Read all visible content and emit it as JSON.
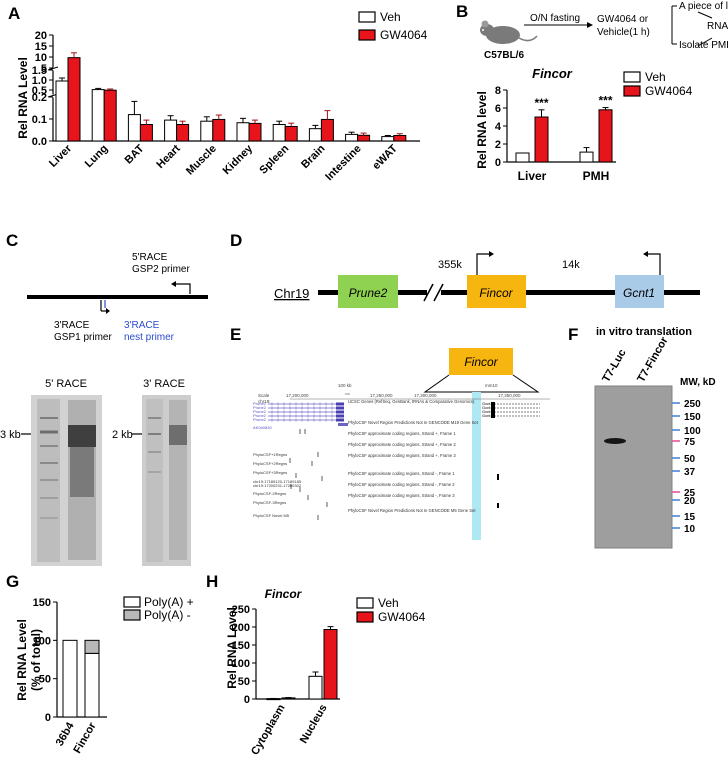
{
  "panel_labels": [
    "A",
    "B",
    "C",
    "D",
    "E",
    "F",
    "G",
    "H"
  ],
  "colors": {
    "veh": "#ffffff",
    "gw": "#e8141b",
    "polya_minus": "#b8b8b8",
    "outline": "#000000",
    "gene_prune2": "#8fd150",
    "gene_fincor": "#f7b50f",
    "gene_gcnt1": "#a9cbe8",
    "highlight": "#aee8f2",
    "mw_marker": "#e24a8e",
    "mw_marker_blue": "#3c7ed8"
  },
  "panel_a": {
    "legend": [
      "Veh",
      "GW4064"
    ],
    "chart_data": {
      "type": "bar",
      "categories": [
        "Liver",
        "Lung",
        "BAT",
        "Heart",
        "Muscle",
        "Kidney",
        "Spleen",
        "Brain",
        "Intestine",
        "eWAT"
      ],
      "series": [
        {
          "name": "Veh",
          "values": [
            0.95,
            0.52,
            0.12,
            0.095,
            0.09,
            0.083,
            0.075,
            0.056,
            0.03,
            0.02
          ],
          "errors": [
            0.15,
            0.06,
            0.06,
            0.02,
            0.02,
            0.02,
            0.015,
            0.015,
            0.01,
            0.005
          ]
        },
        {
          "name": "GW4064",
          "values": [
            9.7,
            0.49,
            0.075,
            0.075,
            0.098,
            0.08,
            0.066,
            0.098,
            0.026,
            0.025
          ],
          "errors": [
            2.2,
            0.06,
            0.02,
            0.015,
            0.02,
            0.015,
            0.015,
            0.04,
            0.01,
            0.008
          ]
        }
      ],
      "ylabel": "Rel RNA Level",
      "ylim": [
        0,
        20
      ],
      "scale": "broken (segments 0-0.2, 0.25-1.5, 5-20)",
      "yticks_low": [
        "0.0",
        "0.1",
        "0.2"
      ],
      "yticks_mid": [
        "0.5",
        "1.0",
        "1.5"
      ],
      "yticks_high": [
        "5",
        "10",
        "15",
        "20"
      ]
    }
  },
  "panel_b": {
    "workflow": {
      "step1": "O/N fasting",
      "step2a": "GW4064 or",
      "step2b": "Vehicle(1 h)",
      "branch_top": "A piece of liver",
      "branch_bottom": "Isolate PMH",
      "result": "RNA",
      "mouse_label": "C57BL/6"
    },
    "legend": [
      "Veh",
      "GW4064"
    ],
    "chart_data": {
      "type": "bar",
      "title": "Fincor",
      "categories": [
        "Liver",
        "PMH"
      ],
      "series": [
        {
          "name": "Veh",
          "values": [
            1.0,
            1.1
          ],
          "errors": [
            0.0,
            0.5
          ]
        },
        {
          "name": "GW4064",
          "values": [
            5.0,
            5.8
          ],
          "errors": [
            0.8,
            0.25
          ]
        }
      ],
      "significance": [
        "***",
        "***"
      ],
      "ylabel": "Rel RNA level",
      "ylim": [
        0,
        8
      ],
      "yticks": [
        "0",
        "2",
        "4",
        "6",
        "8"
      ]
    }
  },
  "panel_c": {
    "primer_5": [
      "5'RACE",
      "GSP2 primer"
    ],
    "primer_3_gsp1": [
      "3'RACE",
      "GSP1 primer"
    ],
    "primer_3_nest": [
      "3'RACE",
      "nest primer"
    ],
    "gel1_title": "5' RACE",
    "gel2_title": "3' RACE",
    "gel1_marker": "3 kb",
    "gel2_marker": "2 kb"
  },
  "panel_d": {
    "chrom": "Chr19",
    "genes": [
      "Prune2",
      "Fincor",
      "Gcnt1"
    ],
    "dist1": "355k",
    "dist2": "14k"
  },
  "panel_e": {
    "gene": "Fincor",
    "scale_label": "Scale",
    "chrom_label": "chr19:",
    "coords": [
      "17,200,000",
      "17,250,000",
      "17,300,000",
      "17,350,000"
    ],
    "kb_label": "100 kb",
    "hg": "mm10",
    "tracks": [
      "UCSC Genes (RefSeq, GenBank, tRNAs & Comparative Genomics)",
      "PhyloCSF Novel Region Predictions Not In GENCODE M19 Gene Set",
      "PhyloCSF approximate coding regions, Strand +, Frame 1",
      "PhyloCSF approximate coding regions, Strand +, Frame 2",
      "PhyloCSF approximate coding regions, Strand +, Frame 3",
      "PhyloCSF approximate coding regions, Strand -, Frame 1",
      "PhyloCSF approximate coding regions, Strand -, Frame 2",
      "PhyloCSF approximate coding regions, Strand -, Frame 3",
      "PhyloCSF Novel Region Predictions Not In GENCODE M5 Gene Set"
    ],
    "left_labels": [
      "Prune2",
      "Prune2",
      "Prune2",
      "Prune2",
      "Prune2",
      "AK040830",
      "PhyloCSF+1Regns",
      "PhyloCSF+2Regns",
      "PhyloCSF+3Regns",
      "chr19:17189120-17189185",
      "chr19:17200231-17200302",
      "PhyloCSF-2Regns",
      "PhyloCSF-3Regns",
      "PhyloCSF Novel M5"
    ],
    "right_labels": [
      "Gcnt1",
      "Gcnt1",
      "Gcnt1",
      "Gcnt1"
    ]
  },
  "panel_f": {
    "title": "in vitro translation",
    "lanes": [
      "T7-Luc",
      "T7-Fincor"
    ],
    "mw_header": "MW, kD",
    "mw_markers": [
      "250",
      "150",
      "100",
      "75",
      "50",
      "37",
      "25",
      "20",
      "15",
      "10"
    ]
  },
  "panel_g": {
    "legend": [
      "Poly(A) +",
      "Poly(A) -"
    ],
    "chart_data": {
      "type": "bar",
      "categories": [
        "36b4",
        "Fincor"
      ],
      "series": [
        {
          "name": "Poly(A) +",
          "values": [
            100,
            83
          ]
        },
        {
          "name": "Poly(A) -",
          "values": [
            0,
            17
          ]
        }
      ],
      "stacked": true,
      "ylabel": "Rel RNA Level (% of total)",
      "ylabel1": "Rel RNA Level",
      "ylabel2": "(% of total)",
      "ylim": [
        0,
        150
      ],
      "yticks": [
        "0",
        "50",
        "100",
        "150"
      ]
    }
  },
  "panel_h": {
    "legend": [
      "Veh",
      "GW4064"
    ],
    "chart_data": {
      "type": "bar",
      "title": "Fincor",
      "categories": [
        "Cytoplasm",
        "Nucleus"
      ],
      "series": [
        {
          "name": "Veh",
          "values": [
            1,
            63
          ],
          "errors": [
            0.5,
            12
          ]
        },
        {
          "name": "GW4064",
          "values": [
            3,
            193
          ],
          "errors": [
            1,
            8
          ]
        }
      ],
      "ylabel": "Rel RNA Level",
      "ylim": [
        0,
        250
      ],
      "yticks": [
        "0",
        "50",
        "100",
        "150",
        "200",
        "250"
      ]
    }
  }
}
